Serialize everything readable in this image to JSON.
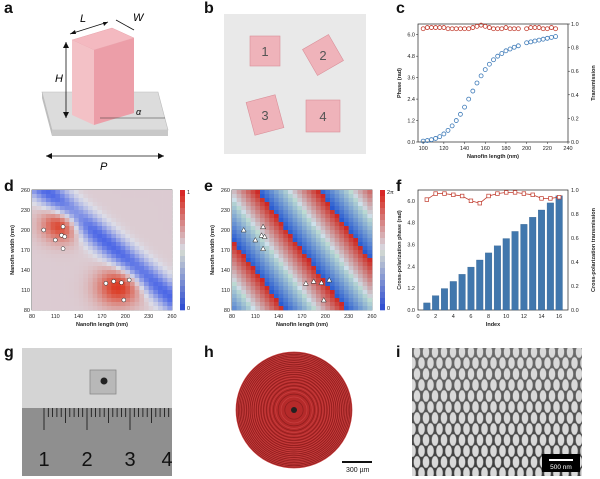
{
  "panels": {
    "a": {
      "letter": "a",
      "dims": {
        "L": "L",
        "W": "W",
        "H": "H",
        "alpha": "α",
        "P": "P"
      }
    },
    "b": {
      "letter": "b",
      "nanofins": [
        "1",
        "2",
        "3",
        "4"
      ]
    },
    "c": {
      "letter": "c"
    },
    "d": {
      "letter": "d"
    },
    "e": {
      "letter": "e"
    },
    "f": {
      "letter": "f"
    },
    "g": {
      "letter": "g",
      "ruler_numbers": [
        "1",
        "2",
        "3",
        "4"
      ]
    },
    "h": {
      "letter": "h",
      "scale_bar": "300 µm"
    },
    "i": {
      "letter": "i",
      "scale_bar": "500 nm"
    }
  },
  "chart_data": [
    {
      "panel": "c",
      "type": "scatter",
      "xlabel": "Nanofin length (nm)",
      "ylabel": "Phase (rad)",
      "y2label": "Transmission",
      "xlim": [
        95,
        240
      ],
      "ylim": [
        0,
        6.6
      ],
      "y2lim": [
        0,
        1.0
      ],
      "xticks": [
        "100",
        "120",
        "140",
        "160",
        "180",
        "200",
        "220",
        "240"
      ],
      "yticks": [
        "0.0",
        "1.2",
        "2.4",
        "3.6",
        "4.8",
        "6.0"
      ],
      "y2ticks": [
        "0.0",
        "0.2",
        "0.4",
        "0.6",
        "0.8",
        "1.0"
      ],
      "series": [
        {
          "name": "Phase",
          "axis": "left",
          "color": "#3d7ab8",
          "x": [
            100,
            104,
            108,
            112,
            116,
            120,
            124,
            128,
            132,
            136,
            140,
            144,
            148,
            152,
            156,
            160,
            164,
            168,
            172,
            176,
            180,
            184,
            188,
            192,
            200,
            204,
            208,
            212,
            216,
            220,
            224,
            228
          ],
          "y": [
            0.05,
            0.08,
            0.13,
            0.2,
            0.3,
            0.45,
            0.65,
            0.9,
            1.2,
            1.55,
            1.95,
            2.4,
            2.85,
            3.3,
            3.7,
            4.05,
            4.35,
            4.6,
            4.8,
            4.95,
            5.1,
            5.2,
            5.3,
            5.38,
            5.55,
            5.6,
            5.65,
            5.7,
            5.75,
            5.8,
            5.85,
            5.9
          ]
        },
        {
          "name": "Transmission",
          "axis": "right",
          "color": "#c0392b",
          "x": [
            100,
            104,
            108,
            112,
            116,
            120,
            124,
            128,
            132,
            136,
            140,
            144,
            148,
            152,
            156,
            160,
            164,
            168,
            172,
            176,
            180,
            184,
            188,
            192,
            200,
            204,
            208,
            212,
            216,
            220,
            224,
            228
          ],
          "y": [
            0.96,
            0.97,
            0.97,
            0.97,
            0.97,
            0.97,
            0.96,
            0.96,
            0.96,
            0.96,
            0.96,
            0.96,
            0.97,
            0.98,
            0.99,
            0.98,
            0.97,
            0.96,
            0.96,
            0.96,
            0.97,
            0.96,
            0.96,
            0.96,
            0.96,
            0.97,
            0.97,
            0.97,
            0.96,
            0.96,
            0.97,
            0.96
          ]
        }
      ]
    },
    {
      "panel": "d",
      "type": "heatmap",
      "xlabel": "Nanofin length (nm)",
      "ylabel": "Nanofin width (nm)",
      "xticks": [
        "80",
        "110",
        "140",
        "170",
        "200",
        "230",
        "260"
      ],
      "yticks": [
        "80",
        "110",
        "140",
        "170",
        "200",
        "230",
        "260"
      ],
      "colorbar": [
        "0",
        "1"
      ],
      "colorbar_label": "Transmission",
      "markers": [
        [
          95,
          200
        ],
        [
          110,
          185
        ],
        [
          118,
          192
        ],
        [
          120,
          205
        ],
        [
          122,
          190
        ],
        [
          175,
          120
        ],
        [
          185,
          123
        ],
        [
          195,
          121
        ],
        [
          205,
          125
        ],
        [
          198,
          95
        ],
        [
          120,
          172
        ]
      ]
    },
    {
      "panel": "e",
      "type": "heatmap",
      "xlabel": "Nanofin length (nm)",
      "ylabel": "Nanofin width (nm)",
      "xticks": [
        "80",
        "110",
        "140",
        "170",
        "200",
        "230",
        "260"
      ],
      "yticks": [
        "80",
        "110",
        "140",
        "170",
        "200",
        "230",
        "260"
      ],
      "colorbar": [
        "0",
        "2π"
      ],
      "colorbar_label": "Phase",
      "markers": [
        [
          95,
          200
        ],
        [
          110,
          185
        ],
        [
          118,
          192
        ],
        [
          120,
          205
        ],
        [
          122,
          190
        ],
        [
          175,
          120
        ],
        [
          185,
          123
        ],
        [
          195,
          121
        ],
        [
          205,
          125
        ],
        [
          198,
          95
        ],
        [
          120,
          172
        ]
      ]
    },
    {
      "panel": "f",
      "type": "bar",
      "xlabel": "Index",
      "ylabel": "Cross-polarization phase (rad)",
      "y2label": "Cross-polarization transmission",
      "categories": [
        "1",
        "2",
        "3",
        "4",
        "5",
        "6",
        "7",
        "8",
        "9",
        "10",
        "11",
        "12",
        "13",
        "14",
        "15",
        "16"
      ],
      "xticks": [
        "0",
        "2",
        "4",
        "6",
        "8",
        "10",
        "12",
        "14",
        "16"
      ],
      "yticks": [
        "0.0",
        "1.2",
        "2.4",
        "3.6",
        "4.8",
        "6.0"
      ],
      "y2ticks": [
        "0.0",
        "0.2",
        "0.4",
        "0.6",
        "0.8",
        "1.0"
      ],
      "ylim": [
        0,
        6.6
      ],
      "y2lim": [
        0,
        1.0
      ],
      "series": [
        {
          "name": "Phase",
          "axis": "left",
          "color": "#3d6fa5",
          "values": [
            0.39,
            0.79,
            1.18,
            1.57,
            1.96,
            2.36,
            2.75,
            3.14,
            3.53,
            3.93,
            4.32,
            4.71,
            5.1,
            5.5,
            5.89,
            6.28
          ]
        },
        {
          "name": "Transmission",
          "axis": "right",
          "color": "#c0392b",
          "values": [
            0.92,
            0.97,
            0.97,
            0.96,
            0.95,
            0.91,
            0.89,
            0.95,
            0.97,
            0.98,
            0.98,
            0.97,
            0.96,
            0.93,
            0.93,
            0.94
          ]
        }
      ]
    }
  ]
}
